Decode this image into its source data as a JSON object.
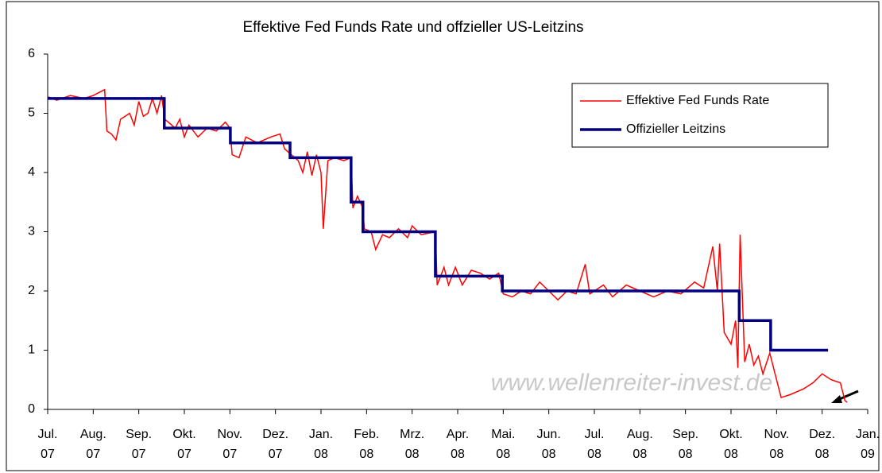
{
  "chart_data": {
    "type": "line",
    "title": "Effektive Fed Funds Rate und offzieller US-Leitzins",
    "watermark": "www.wellenreiter-invest.de",
    "xlim": [
      0,
      18
    ],
    "xticks": [
      {
        "value": 0,
        "label": [
          "Jul.",
          "07"
        ]
      },
      {
        "value": 1,
        "label": [
          "Aug.",
          "07"
        ]
      },
      {
        "value": 2,
        "label": [
          "Sep.",
          "07"
        ]
      },
      {
        "value": 3,
        "label": [
          "Okt.",
          "07"
        ]
      },
      {
        "value": 4,
        "label": [
          "Nov.",
          "07"
        ]
      },
      {
        "value": 5,
        "label": [
          "Dez.",
          "07"
        ]
      },
      {
        "value": 6,
        "label": [
          "Jan.",
          "08"
        ]
      },
      {
        "value": 7,
        "label": [
          "Feb.",
          "08"
        ]
      },
      {
        "value": 8,
        "label": [
          "Mrz.",
          "08"
        ]
      },
      {
        "value": 9,
        "label": [
          "Apr.",
          "08"
        ]
      },
      {
        "value": 10,
        "label": [
          "Mai.",
          "08"
        ]
      },
      {
        "value": 11,
        "label": [
          "Jun.",
          "08"
        ]
      },
      {
        "value": 12,
        "label": [
          "Jul.",
          "08"
        ]
      },
      {
        "value": 13,
        "label": [
          "Aug.",
          "08"
        ]
      },
      {
        "value": 14,
        "label": [
          "Sep.",
          "08"
        ]
      },
      {
        "value": 15,
        "label": [
          "Okt.",
          "08"
        ]
      },
      {
        "value": 16,
        "label": [
          "Nov.",
          "08"
        ]
      },
      {
        "value": 17,
        "label": [
          "Dez.",
          "08"
        ]
      },
      {
        "value": 18,
        "label": [
          "Jan.",
          "09"
        ]
      }
    ],
    "ylim": [
      0,
      6
    ],
    "yticks": [
      0,
      1,
      2,
      3,
      4,
      5,
      6
    ],
    "legend": "upper right",
    "series": [
      {
        "name": "Effektive Fed Funds Rate",
        "color": "#ff0000",
        "x": [
          0,
          0.2,
          0.5,
          0.8,
          1.0,
          1.25,
          1.3,
          1.4,
          1.5,
          1.6,
          1.8,
          1.9,
          2.0,
          2.1,
          2.2,
          2.3,
          2.4,
          2.5,
          2.57,
          2.8,
          2.9,
          3.0,
          3.1,
          3.3,
          3.5,
          3.7,
          3.9,
          4.0,
          4.05,
          4.2,
          4.35,
          4.6,
          4.9,
          5.1,
          5.2,
          5.35,
          5.5,
          5.6,
          5.7,
          5.8,
          5.9,
          6.0,
          6.05,
          6.15,
          6.3,
          6.5,
          6.66,
          6.7,
          6.8,
          6.92,
          6.95,
          7.1,
          7.2,
          7.35,
          7.5,
          7.7,
          7.9,
          8.0,
          8.2,
          8.51,
          8.55,
          8.7,
          8.8,
          8.95,
          9.1,
          9.3,
          9.5,
          9.7,
          9.9,
          10.0,
          10.2,
          10.4,
          10.6,
          10.8,
          11.0,
          11.2,
          11.4,
          11.6,
          11.8,
          11.9,
          12.2,
          12.4,
          12.7,
          13.0,
          13.3,
          13.6,
          13.9,
          14.2,
          14.4,
          14.6,
          14.7,
          14.75,
          14.85,
          15.0,
          15.1,
          15.15,
          15.2,
          15.3,
          15.4,
          15.5,
          15.6,
          15.7,
          15.85,
          16.0,
          16.1,
          16.3,
          16.6,
          16.8,
          17.0,
          17.2,
          17.4,
          17.5,
          17.55
        ],
        "values": [
          5.28,
          5.22,
          5.3,
          5.25,
          5.3,
          5.4,
          4.7,
          4.65,
          4.55,
          4.9,
          5.0,
          4.8,
          5.2,
          4.95,
          5.0,
          5.25,
          5.0,
          5.3,
          4.9,
          4.75,
          4.9,
          4.6,
          4.8,
          4.6,
          4.75,
          4.7,
          4.85,
          4.75,
          4.3,
          4.25,
          4.6,
          4.5,
          4.6,
          4.65,
          4.4,
          4.3,
          4.2,
          4.0,
          4.35,
          3.95,
          4.3,
          4.0,
          3.05,
          4.2,
          4.25,
          4.2,
          4.25,
          3.4,
          3.6,
          3.4,
          3.05,
          3.0,
          2.7,
          2.95,
          2.9,
          3.05,
          2.9,
          3.1,
          2.95,
          3.0,
          2.1,
          2.4,
          2.1,
          2.4,
          2.1,
          2.35,
          2.3,
          2.2,
          2.3,
          1.95,
          1.9,
          2.0,
          1.95,
          2.15,
          2.0,
          1.85,
          2.0,
          1.95,
          2.45,
          1.95,
          2.1,
          1.9,
          2.1,
          2.0,
          1.9,
          2.0,
          1.95,
          2.15,
          2.05,
          2.75,
          2.0,
          2.8,
          1.3,
          1.1,
          1.5,
          0.7,
          2.95,
          0.8,
          1.1,
          0.75,
          0.9,
          0.6,
          0.95,
          0.5,
          0.2,
          0.25,
          0.35,
          0.45,
          0.6,
          0.5,
          0.45,
          0.15,
          0.12
        ]
      },
      {
        "name": "Offizieller Leitzins",
        "color": "#000080",
        "x": [
          0,
          2.56,
          2.56,
          4.01,
          4.01,
          5.32,
          5.32,
          6.66,
          6.66,
          6.92,
          6.92,
          8.51,
          8.51,
          9.98,
          9.98,
          15.18,
          15.18,
          15.87,
          15.87,
          17.13
        ],
        "values": [
          5.25,
          5.25,
          4.75,
          4.75,
          4.5,
          4.5,
          4.25,
          4.25,
          3.5,
          3.5,
          3.0,
          3.0,
          2.25,
          2.25,
          2.0,
          2.0,
          1.5,
          1.5,
          1.0,
          1.0
        ]
      }
    ]
  }
}
